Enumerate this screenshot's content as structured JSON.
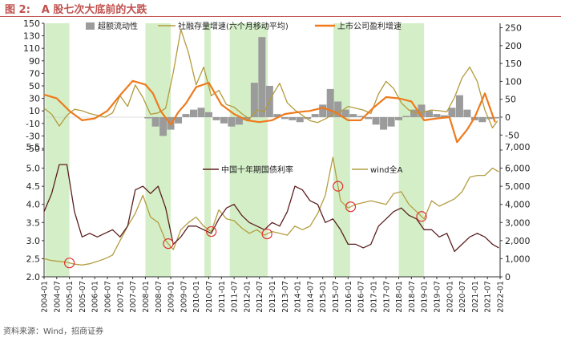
{
  "figure": {
    "label": "图 2:",
    "title": "A 股七次大底前的大跌",
    "source": "资料来源：Wind，招商证券"
  },
  "colors": {
    "title": "#c0504d",
    "shade": "#d4efc7",
    "excess_liquidity": "#9b9b9b",
    "social_financing": "#b39b3c",
    "profit_growth": "#ee7a1d",
    "bond_yield": "#5c1f1f",
    "wind_a": "#b49d42",
    "circle": "#e03030",
    "red_text": "#d00000"
  },
  "chart_data": [
    {
      "type": "bar+line",
      "panel": "top",
      "legend": [
        "超额流动性",
        "社融存量增速(六个月移动平均)",
        "上市公司盈利增速"
      ],
      "y_left_ticks": [
        "150",
        "130",
        "110",
        "90",
        "70",
        "50",
        "30",
        "10",
        "-10",
        "-30",
        "-50"
      ],
      "y_right_ticks": [
        "250",
        "200",
        "150",
        "100",
        "50",
        "0",
        "-50"
      ],
      "ylim_left": [
        -50,
        150
      ],
      "ylim_right": [
        -87.5,
        262.5
      ],
      "series": [
        {
          "name": "超额流动性",
          "axis": "left",
          "t": [
            2008.1,
            2008.4,
            2008.7,
            2009.0,
            2009.3,
            2009.6,
            2009.9,
            2010.2,
            2010.5,
            2010.8,
            2011.1,
            2011.4,
            2011.7,
            2012.0,
            2012.3,
            2012.6,
            2012.9,
            2013.2,
            2013.5,
            2013.8,
            2014.1,
            2014.4,
            2014.7,
            2015.0,
            2015.3,
            2015.6,
            2015.9,
            2016.2,
            2016.5,
            2016.8,
            2017.1,
            2017.4,
            2017.7,
            2018.0,
            2018.3,
            2018.6,
            2018.9,
            2019.2,
            2019.5,
            2019.8,
            2020.1,
            2020.4,
            2020.7,
            2021.0,
            2021.3,
            2021.6,
            2021.9
          ],
          "values": [
            -2,
            -15,
            -30,
            -20,
            -10,
            5,
            12,
            15,
            8,
            -5,
            -10,
            -15,
            -12,
            -5,
            55,
            128,
            50,
            5,
            -3,
            -5,
            -8,
            -3,
            5,
            20,
            45,
            25,
            12,
            5,
            2,
            -3,
            -12,
            -20,
            -15,
            -5,
            2,
            12,
            20,
            10,
            5,
            3,
            15,
            35,
            12,
            -5,
            -8,
            -3,
            -2
          ]
        },
        {
          "name": "社融存量增速(六个月移动平均)",
          "axis": "right",
          "t": [
            2004.0,
            2004.3,
            2004.6,
            2004.9,
            2005.2,
            2005.5,
            2005.8,
            2006.1,
            2006.4,
            2006.7,
            2007.0,
            2007.3,
            2007.6,
            2007.9,
            2008.2,
            2008.5,
            2008.8,
            2009.1,
            2009.4,
            2009.7,
            2010.0,
            2010.3,
            2010.6,
            2010.9,
            2011.2,
            2011.5,
            2011.8,
            2012.1,
            2012.4,
            2012.7,
            2013.0,
            2013.3,
            2013.6,
            2013.9,
            2014.2,
            2014.5,
            2014.8,
            2015.1,
            2015.4,
            2015.7,
            2016.0,
            2016.3,
            2016.6,
            2016.9,
            2017.2,
            2017.5,
            2017.8,
            2018.1,
            2018.4,
            2018.7,
            2019.0,
            2019.3,
            2019.6,
            2019.9,
            2020.2,
            2020.5,
            2020.8,
            2021.1,
            2021.4,
            2021.7,
            2021.9
          ],
          "values": [
            25,
            8,
            -25,
            5,
            22,
            18,
            10,
            5,
            0,
            12,
            60,
            30,
            90,
            55,
            8,
            12,
            25,
            125,
            245,
            180,
            90,
            140,
            60,
            75,
            35,
            28,
            10,
            -5,
            20,
            15,
            60,
            95,
            40,
            20,
            5,
            -10,
            -15,
            -5,
            8,
            15,
            30,
            25,
            20,
            10,
            65,
            100,
            80,
            40,
            20,
            10,
            15,
            20,
            18,
            15,
            55,
            110,
            140,
            100,
            20,
            -30,
            -10
          ]
        },
        {
          "name": "上市公司盈利增速",
          "axis": "left",
          "t": [
            2004.0,
            2004.5,
            2005.0,
            2005.5,
            2006.0,
            2006.5,
            2007.0,
            2007.5,
            2008.0,
            2008.3,
            2008.6,
            2009.0,
            2009.3,
            2009.6,
            2010.0,
            2010.5,
            2011.0,
            2011.5,
            2012.0,
            2012.5,
            2013.0,
            2013.5,
            2014.0,
            2014.5,
            2015.0,
            2015.5,
            2016.0,
            2016.5,
            2017.0,
            2017.5,
            2018.0,
            2018.5,
            2019.0,
            2019.5,
            2020.0,
            2020.3,
            2020.7,
            2021.0,
            2021.4,
            2021.8
          ],
          "values": [
            36,
            30,
            10,
            -5,
            -2,
            10,
            35,
            58,
            52,
            38,
            10,
            -12,
            8,
            22,
            48,
            55,
            20,
            5,
            -5,
            -8,
            -5,
            5,
            8,
            10,
            15,
            8,
            -5,
            -5,
            15,
            32,
            30,
            25,
            -5,
            -2,
            0,
            -40,
            -20,
            0,
            38,
            -8
          ]
        }
      ]
    },
    {
      "type": "line",
      "panel": "bottom",
      "legend": [
        "中国十年期国债利率",
        "wind全A"
      ],
      "x_tick_labels": [
        "2004-01",
        "2004-07",
        "2005-01",
        "2005-07",
        "2006-01",
        "2006-07",
        "2007-01",
        "2007-07",
        "2008-01",
        "2008-07",
        "2009-01",
        "2009-07",
        "2010-01",
        "2010-07",
        "2011-01",
        "2011-07",
        "2012-01",
        "2012-07",
        "2013-01",
        "2013-07",
        "2014-01",
        "2014-07",
        "2015-01",
        "2015-07",
        "2016-01",
        "2016-07",
        "2017-01",
        "2017-07",
        "2018-01",
        "2018-07",
        "2019-01",
        "2019-07",
        "2020-01",
        "2020-07",
        "2021-01",
        "2021-07",
        "2022-01"
      ],
      "y_left_ticks": [
        "5.5",
        "5.0",
        "4.5",
        "4.0",
        "3.5",
        "3.0",
        "2.5",
        "2.0"
      ],
      "y_right_ticks": [
        "7,000",
        "6,000",
        "5,000",
        "4,000",
        "3,000",
        "2,000",
        "1,000",
        "0"
      ],
      "ylim_left": [
        2.0,
        5.5
      ],
      "ylim_right": [
        0,
        7000
      ],
      "shaded_periods": [
        [
          2004.05,
          2005.0
        ],
        [
          2008.0,
          2009.0
        ],
        [
          2010.33,
          2010.58
        ],
        [
          2011.33,
          2012.83
        ],
        [
          2015.42,
          2016.08
        ],
        [
          2018.0,
          2019.0
        ]
      ],
      "series": [
        {
          "name": "中国十年期国债利率",
          "axis": "left",
          "t": [
            2004.0,
            2004.3,
            2004.6,
            2004.9,
            2005.2,
            2005.5,
            2005.8,
            2006.1,
            2006.4,
            2006.7,
            2007.0,
            2007.3,
            2007.6,
            2007.9,
            2008.2,
            2008.5,
            2008.8,
            2009.1,
            2009.4,
            2009.7,
            2010.0,
            2010.3,
            2010.6,
            2010.9,
            2011.2,
            2011.5,
            2011.8,
            2012.1,
            2012.4,
            2012.7,
            2013.0,
            2013.3,
            2013.6,
            2013.9,
            2014.2,
            2014.5,
            2014.8,
            2015.1,
            2015.4,
            2015.7,
            2016.0,
            2016.3,
            2016.6,
            2016.9,
            2017.2,
            2017.5,
            2017.8,
            2018.1,
            2018.4,
            2018.7,
            2019.0,
            2019.3,
            2019.6,
            2019.9,
            2020.2,
            2020.5,
            2020.8,
            2021.1,
            2021.4,
            2021.7,
            2021.95
          ],
          "values": [
            3.8,
            4.3,
            5.1,
            5.1,
            3.8,
            3.1,
            3.2,
            3.1,
            3.2,
            3.3,
            3.1,
            3.4,
            4.4,
            4.5,
            4.3,
            4.5,
            3.9,
            2.9,
            3.1,
            3.4,
            3.4,
            3.3,
            3.2,
            3.6,
            3.9,
            4.0,
            3.7,
            3.5,
            3.4,
            3.3,
            3.5,
            3.4,
            3.8,
            4.5,
            4.4,
            4.1,
            4.0,
            3.5,
            3.6,
            3.3,
            2.9,
            2.9,
            2.8,
            2.9,
            3.4,
            3.6,
            3.8,
            3.9,
            3.7,
            3.6,
            3.3,
            3.3,
            3.1,
            3.2,
            2.7,
            2.9,
            3.1,
            3.2,
            3.1,
            2.9,
            2.8
          ]
        },
        {
          "name": "wind全A",
          "axis": "right",
          "t": [
            2004.0,
            2004.3,
            2004.6,
            2004.9,
            2005.2,
            2005.5,
            2005.8,
            2006.1,
            2006.4,
            2006.7,
            2007.0,
            2007.3,
            2007.6,
            2007.9,
            2008.2,
            2008.5,
            2008.8,
            2009.1,
            2009.4,
            2009.7,
            2010.0,
            2010.3,
            2010.6,
            2010.9,
            2011.2,
            2011.5,
            2011.8,
            2012.1,
            2012.4,
            2012.7,
            2013.0,
            2013.3,
            2013.6,
            2013.9,
            2014.2,
            2014.5,
            2014.8,
            2015.1,
            2015.4,
            2015.7,
            2016.0,
            2016.3,
            2016.6,
            2016.9,
            2017.2,
            2017.5,
            2017.8,
            2018.1,
            2018.4,
            2018.7,
            2019.0,
            2019.3,
            2019.6,
            2019.9,
            2020.2,
            2020.5,
            2020.8,
            2021.1,
            2021.4,
            2021.7,
            2021.95
          ],
          "values": [
            1000,
            900,
            850,
            800,
            700,
            650,
            720,
            850,
            1000,
            1200,
            2000,
            2800,
            3500,
            4500,
            3300,
            3000,
            2000,
            1500,
            2600,
            3000,
            3300,
            2800,
            2500,
            3700,
            3200,
            3100,
            2700,
            2400,
            2600,
            2300,
            2500,
            2400,
            2300,
            2800,
            2600,
            2800,
            3500,
            4500,
            6600,
            4200,
            3800,
            4000,
            4100,
            4200,
            4100,
            4000,
            4600,
            4700,
            4000,
            3600,
            3200,
            4200,
            3900,
            4100,
            4300,
            4700,
            5500,
            5600,
            5600,
            6000,
            5800
          ]
        }
      ],
      "marked_bottoms_t": [
        2005.0,
        2008.9,
        2010.6,
        2012.8,
        2015.6,
        2016.1,
        2018.9
      ]
    }
  ]
}
